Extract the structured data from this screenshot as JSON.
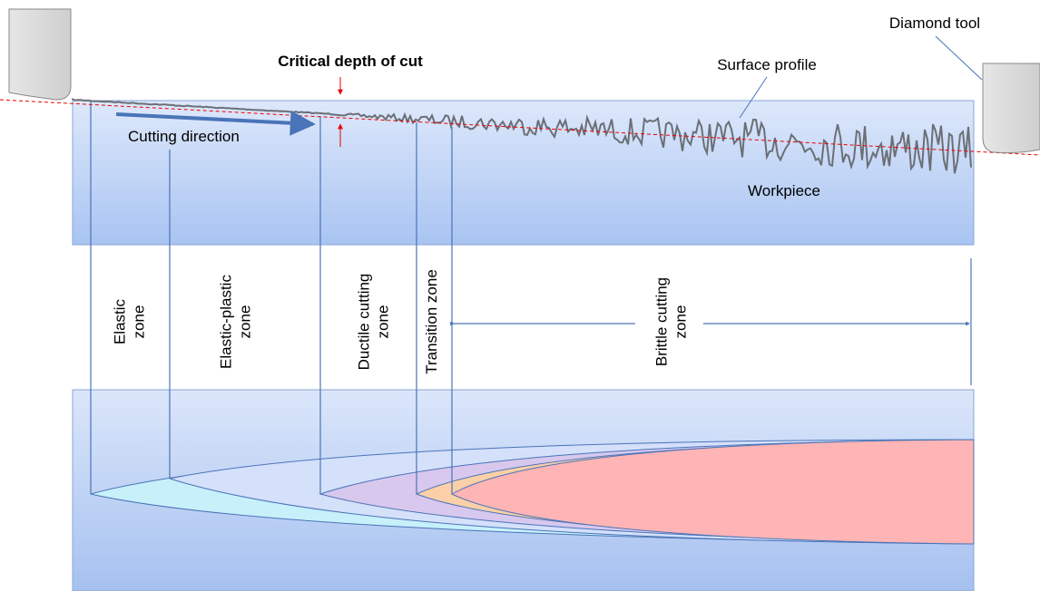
{
  "labels": {
    "tool": "Diamond tool",
    "critical_depth": "Critical depth of cut",
    "surface_profile": "Surface profile",
    "cutting_direction": "Cutting direction",
    "workpiece": "Workpiece"
  },
  "zones": [
    {
      "lines": [
        "Elastic",
        "zone"
      ]
    },
    {
      "lines": [
        "Elastic-plastic",
        "zone"
      ]
    },
    {
      "lines": [
        "Ductile cutting",
        "zone"
      ]
    },
    {
      "lines": [
        "Transition zone"
      ]
    },
    {
      "lines": [
        "Brittle cutting",
        "zone"
      ]
    }
  ]
}
